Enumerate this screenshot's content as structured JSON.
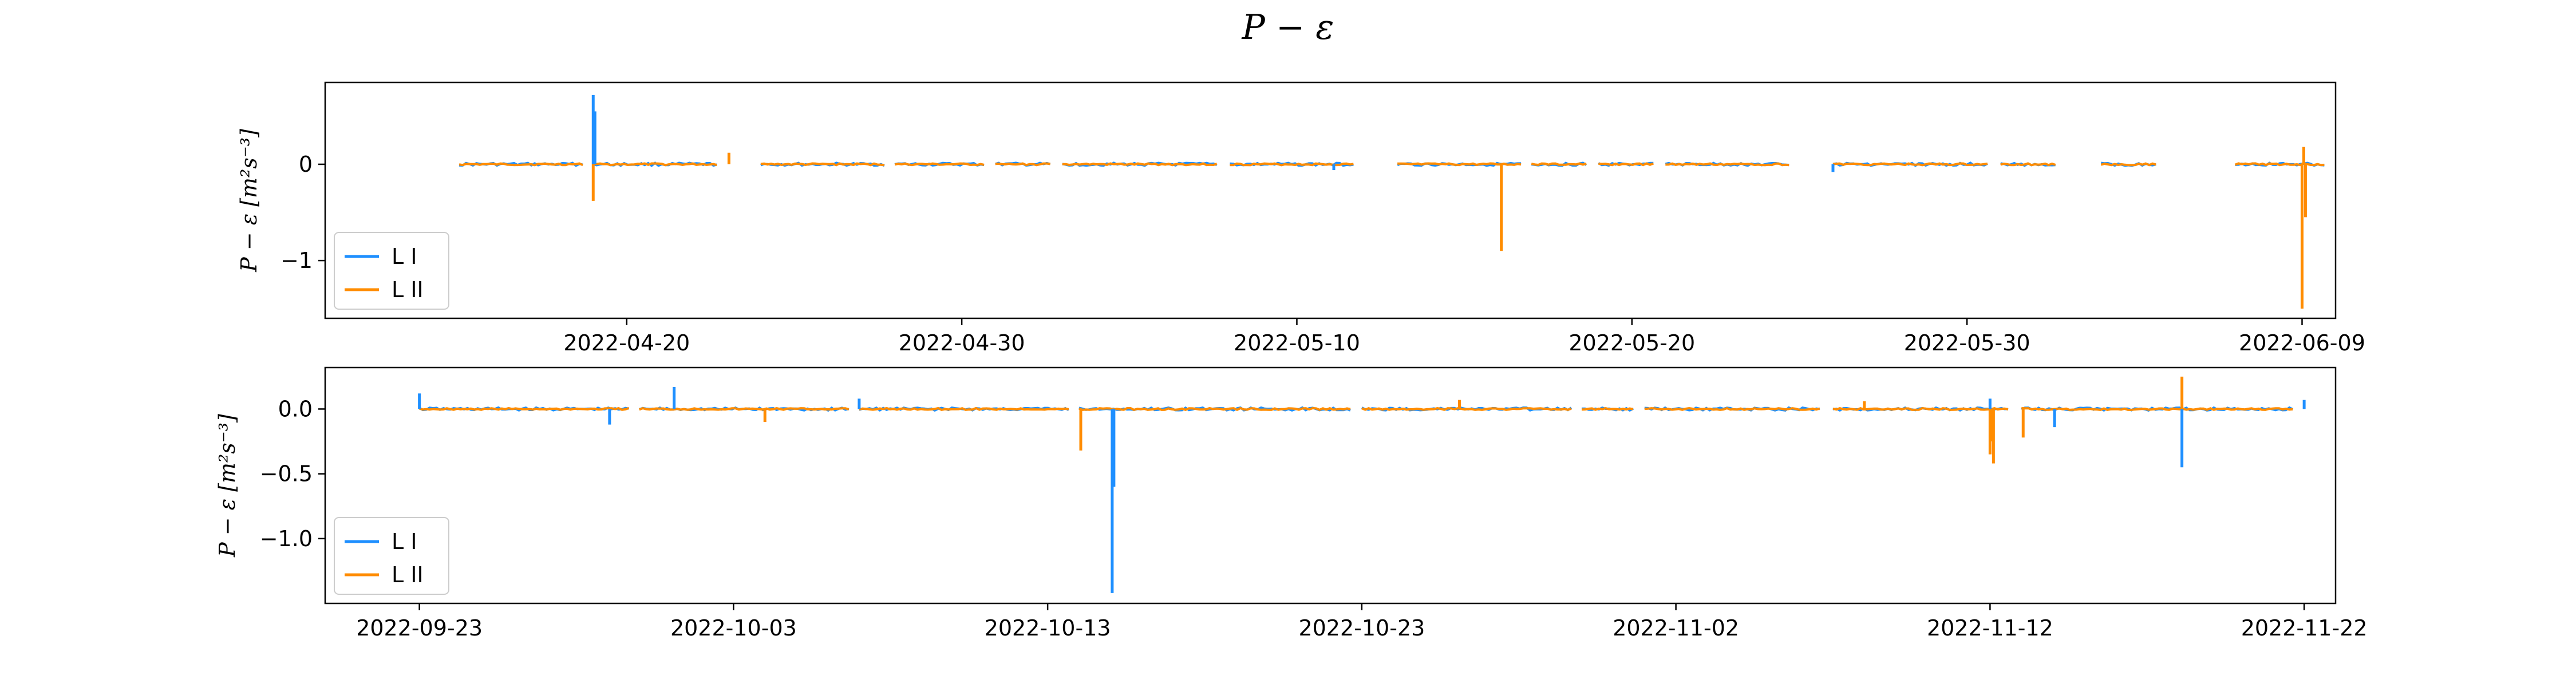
{
  "title": "P − ε",
  "colors": {
    "LI": "#1e8fff",
    "LII": "#ff8c00"
  },
  "chart_data": [
    {
      "type": "line",
      "ylabel": "P − ε [m²s⁻³]",
      "ylim": [
        -1.6,
        0.85
      ],
      "xlim": [
        "2022-04-11",
        "2022-06-10"
      ],
      "x_ticks": [
        "2022-04-20",
        "2022-04-30",
        "2022-05-10",
        "2022-05-20",
        "2022-05-30",
        "2022-06-09"
      ],
      "y_ticks": [
        0,
        -1
      ],
      "y_tick_labels": [
        "0",
        "−1"
      ],
      "legend": {
        "position": "lower-left",
        "entries": [
          "L I",
          "L II"
        ]
      },
      "baseline_segments": [
        [
          "2022-04-15",
          "2022-04-19"
        ],
        [
          "2022-04-19",
          "2022-04-23"
        ],
        [
          "2022-04-24",
          "2022-04-28"
        ],
        [
          "2022-04-28",
          "2022-05-01"
        ],
        [
          "2022-05-01",
          "2022-05-03"
        ],
        [
          "2022-05-03",
          "2022-05-08"
        ],
        [
          "2022-05-08",
          "2022-05-12"
        ],
        [
          "2022-05-13",
          "2022-05-17"
        ],
        [
          "2022-05-17",
          "2022-05-19"
        ],
        [
          "2022-05-19",
          "2022-05-21"
        ],
        [
          "2022-05-21",
          "2022-05-25"
        ],
        [
          "2022-05-26",
          "2022-05-31"
        ],
        [
          "2022-05-31",
          "2022-06-02"
        ],
        [
          "2022-06-03",
          "2022-06-05"
        ],
        [
          "2022-06-07",
          "2022-06-10"
        ]
      ],
      "series": [
        {
          "name": "L I",
          "spikes": [
            {
              "x": "2022-04-19",
              "y": 0.72
            },
            {
              "x": "2022-04-19",
              "y": 0.55
            },
            {
              "x": "2022-05-11",
              "y": -0.06
            },
            {
              "x": "2022-05-26",
              "y": -0.08
            }
          ]
        },
        {
          "name": "L II",
          "spikes": [
            {
              "x": "2022-04-19",
              "y": -0.38
            },
            {
              "x": "2022-04-23",
              "y": 0.12
            },
            {
              "x": "2022-05-16",
              "y": -0.9
            },
            {
              "x": "2022-06-09",
              "y": -1.5
            },
            {
              "x": "2022-06-09",
              "y": 0.18
            },
            {
              "x": "2022-06-09",
              "y": -0.55
            }
          ]
        }
      ]
    },
    {
      "type": "line",
      "ylabel": "P − ε [m²s⁻³]",
      "ylim": [
        -1.5,
        0.32
      ],
      "xlim": [
        "2022-09-20",
        "2022-11-23"
      ],
      "x_ticks": [
        "2022-09-23",
        "2022-10-03",
        "2022-10-13",
        "2022-10-23",
        "2022-11-02",
        "2022-11-12",
        "2022-11-22"
      ],
      "y_ticks": [
        0.0,
        -0.5,
        -1.0
      ],
      "y_tick_labels": [
        "0.0",
        "−0.5",
        "−1.0"
      ],
      "legend": {
        "position": "lower-left",
        "entries": [
          "L I",
          "L II"
        ]
      },
      "baseline_segments": [
        [
          "2022-09-23",
          "2022-09-30"
        ],
        [
          "2022-09-30",
          "2022-10-07"
        ],
        [
          "2022-10-07",
          "2022-10-14"
        ],
        [
          "2022-10-14",
          "2022-10-23"
        ],
        [
          "2022-10-23",
          "2022-10-30"
        ],
        [
          "2022-10-30",
          "2022-11-01"
        ],
        [
          "2022-11-01",
          "2022-11-07"
        ],
        [
          "2022-11-07",
          "2022-11-13"
        ],
        [
          "2022-11-13",
          "2022-11-22"
        ]
      ],
      "series": [
        {
          "name": "L I",
          "spikes": [
            {
              "x": "2022-09-23",
              "y": 0.12
            },
            {
              "x": "2022-09-29",
              "y": -0.12
            },
            {
              "x": "2022-10-01",
              "y": 0.17
            },
            {
              "x": "2022-10-07",
              "y": 0.08
            },
            {
              "x": "2022-10-15",
              "y": -1.42
            },
            {
              "x": "2022-10-15",
              "y": -0.6
            },
            {
              "x": "2022-11-12",
              "y": 0.08
            },
            {
              "x": "2022-11-14",
              "y": -0.14
            },
            {
              "x": "2022-11-18",
              "y": -0.45
            },
            {
              "x": "2022-11-22",
              "y": 0.07
            }
          ]
        },
        {
          "name": "L II",
          "spikes": [
            {
              "x": "2022-10-04",
              "y": -0.1
            },
            {
              "x": "2022-10-14",
              "y": -0.32
            },
            {
              "x": "2022-10-26",
              "y": 0.07
            },
            {
              "x": "2022-11-08",
              "y": 0.06
            },
            {
              "x": "2022-11-12",
              "y": -0.25
            },
            {
              "x": "2022-11-12",
              "y": -0.42
            },
            {
              "x": "2022-11-12",
              "y": -0.35
            },
            {
              "x": "2022-11-13",
              "y": -0.22
            },
            {
              "x": "2022-11-18",
              "y": 0.25
            }
          ]
        }
      ]
    }
  ]
}
